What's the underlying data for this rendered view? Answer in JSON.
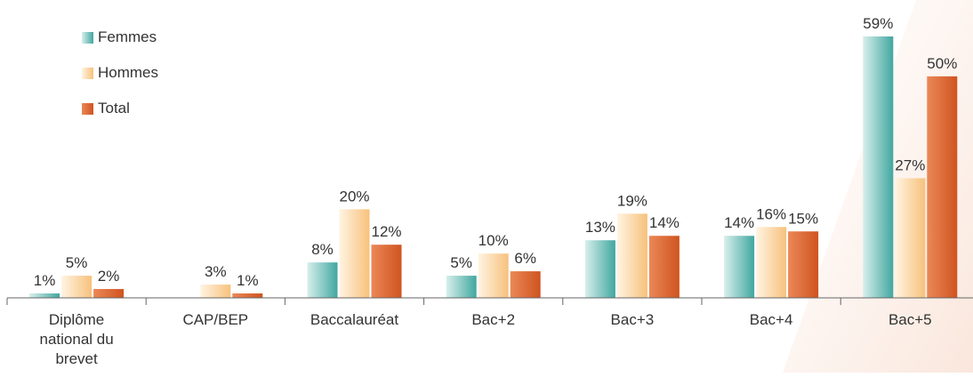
{
  "legend": {
    "femmes": "Femmes",
    "hommes": "Hommes",
    "total": "Total"
  },
  "chart_data": {
    "type": "bar",
    "categories": [
      [
        "Diplôme",
        "national du",
        "brevet"
      ],
      [
        "CAP/BEP"
      ],
      [
        "Baccalauréat"
      ],
      [
        "Bac+2"
      ],
      [
        "Bac+3"
      ],
      [
        "Bac+4"
      ],
      [
        "Bac+5"
      ]
    ],
    "series": [
      {
        "name": "Femmes",
        "values": [
          1,
          0,
          8,
          5,
          13,
          14,
          59
        ],
        "labels": [
          "1%",
          "",
          "8%",
          "5%",
          "13%",
          "14%",
          "59%"
        ]
      },
      {
        "name": "Hommes",
        "values": [
          5,
          3,
          20,
          10,
          19,
          16,
          27
        ],
        "labels": [
          "5%",
          "3%",
          "20%",
          "10%",
          "19%",
          "16%",
          "27%"
        ]
      },
      {
        "name": "Total",
        "values": [
          2,
          1,
          12,
          6,
          14,
          15,
          50
        ],
        "labels": [
          "2%",
          "1%",
          "12%",
          "6%",
          "14%",
          "15%",
          "50%"
        ]
      }
    ],
    "ylim": [
      0,
      59
    ],
    "grid": false,
    "legend_position": "top-left",
    "colors": {
      "femmes": "#41a7a0",
      "hommes": "#f7c17c",
      "total": "#cf5420"
    }
  }
}
